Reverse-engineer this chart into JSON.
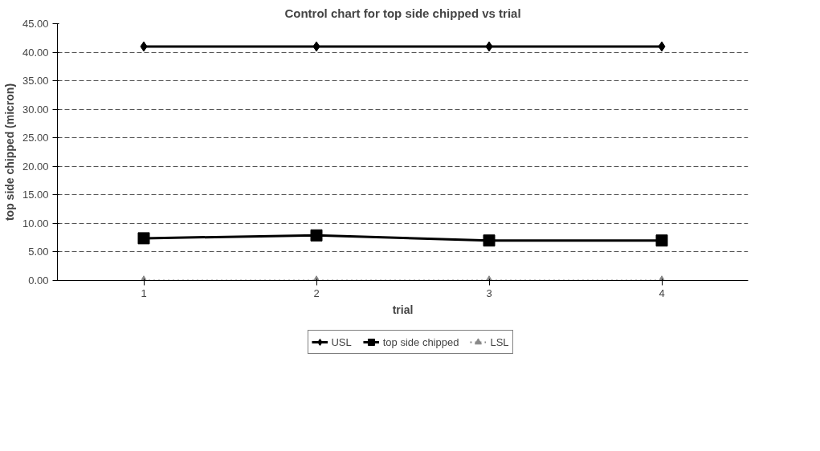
{
  "chart_data": {
    "type": "line",
    "title": "Control chart for top side chipped vs trial",
    "xlabel": "trial",
    "ylabel": "top side chipped (micron)",
    "categories": [
      "1",
      "2",
      "3",
      "4"
    ],
    "series": [
      {
        "name": "USL",
        "color": "#000000",
        "values": [
          41.0,
          41.0,
          41.0,
          41.0
        ],
        "marker": "diamond",
        "line_style": "solid"
      },
      {
        "name": "top side chipped",
        "color": "#000000",
        "values": [
          7.4,
          7.9,
          7.0,
          7.0
        ],
        "marker": "square",
        "line_style": "solid"
      },
      {
        "name": "LSL",
        "color": "#888888",
        "values": [
          0.0,
          0.0,
          0.0,
          0.0
        ],
        "marker": "triangle",
        "line_style": "dotted"
      }
    ],
    "ylim": [
      0,
      45
    ],
    "yticks": [
      {
        "value": 0,
        "label": "0.00"
      },
      {
        "value": 5,
        "label": "5.00"
      },
      {
        "value": 10,
        "label": "10.00"
      },
      {
        "value": 15,
        "label": "15.00"
      },
      {
        "value": 20,
        "label": "20.00"
      },
      {
        "value": 25,
        "label": "25.00"
      },
      {
        "value": 30,
        "label": "30.00"
      },
      {
        "value": 35,
        "label": "35.00"
      },
      {
        "value": 40,
        "label": "40.00"
      },
      {
        "value": 45,
        "label": "45.00"
      }
    ],
    "grid": "y",
    "legend": "bottom"
  }
}
